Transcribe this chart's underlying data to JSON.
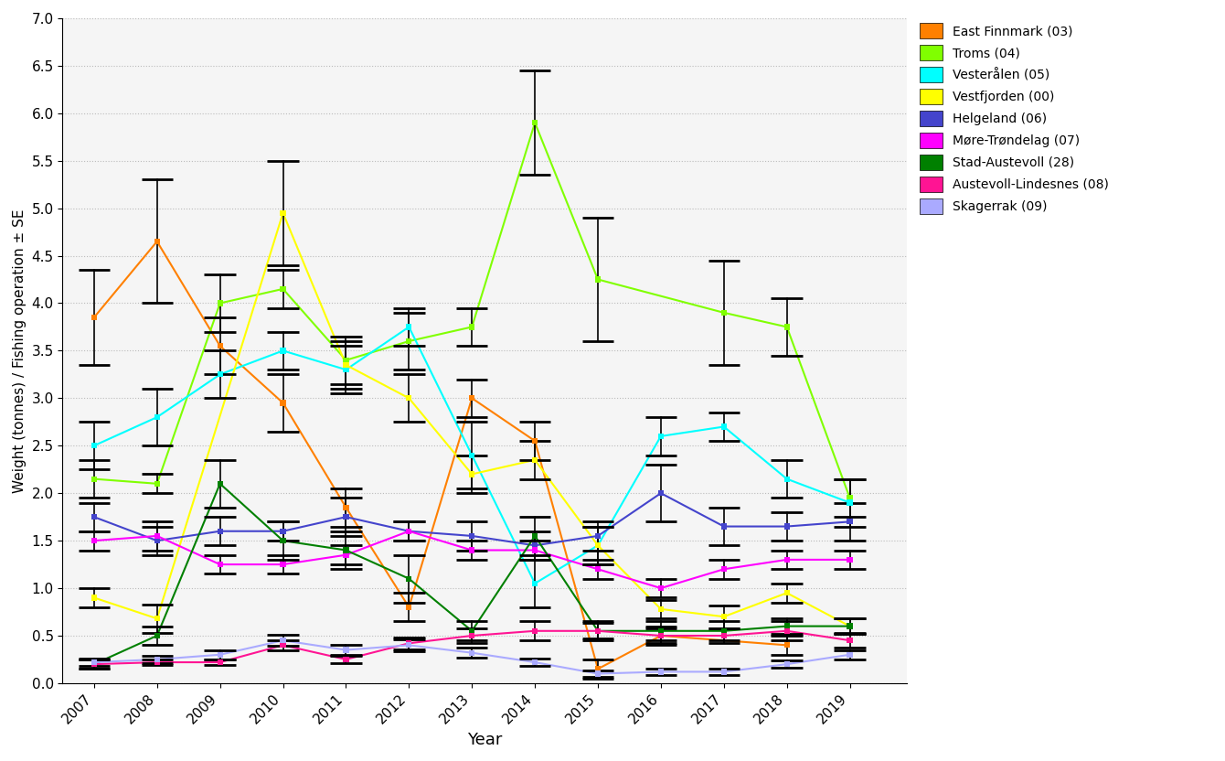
{
  "years": [
    2007,
    2008,
    2009,
    2010,
    2011,
    2012,
    2013,
    2014,
    2015,
    2016,
    2017,
    2018,
    2019
  ],
  "series": {
    "East Finnmark (03)": {
      "color": "#FF8000",
      "mean": [
        3.85,
        4.65,
        3.55,
        2.95,
        1.85,
        0.8,
        3.0,
        2.55,
        0.15,
        0.5,
        null,
        0.4,
        null
      ],
      "se": [
        0.5,
        0.65,
        0.3,
        0.3,
        0.2,
        0.15,
        0.2,
        0.2,
        0.1,
        0.1,
        null,
        0.1,
        null
      ]
    },
    "Troms (04)": {
      "color": "#80FF00",
      "mean": [
        2.15,
        2.1,
        4.0,
        4.15,
        3.4,
        3.6,
        3.75,
        5.9,
        4.25,
        null,
        3.9,
        3.75,
        1.95
      ],
      "se": [
        0.2,
        0.1,
        0.3,
        0.2,
        0.25,
        0.3,
        0.2,
        0.55,
        0.65,
        null,
        0.55,
        0.3,
        0.2
      ]
    },
    "Vesterålen (05)": {
      "color": "#00FFFF",
      "mean": [
        2.5,
        2.8,
        3.25,
        3.5,
        3.3,
        3.75,
        2.4,
        1.05,
        1.45,
        2.6,
        2.7,
        2.15,
        1.9
      ],
      "se": [
        0.25,
        0.3,
        0.25,
        0.2,
        0.25,
        0.2,
        0.35,
        0.25,
        0.2,
        0.2,
        0.15,
        0.2,
        0.25
      ]
    },
    "Vestfjorden (00)": {
      "color": "#FFFF00",
      "mean": [
        0.9,
        0.68,
        null,
        4.95,
        3.35,
        3.0,
        2.2,
        2.35,
        1.45,
        0.78,
        0.7,
        0.95,
        0.6
      ],
      "se": [
        0.1,
        0.15,
        null,
        0.55,
        0.25,
        0.25,
        0.2,
        0.2,
        0.2,
        0.1,
        0.12,
        0.1,
        0.08
      ]
    },
    "Helgeland (06)": {
      "color": "#4444CC",
      "mean": [
        1.75,
        1.5,
        1.6,
        1.6,
        1.75,
        1.6,
        1.55,
        1.45,
        1.55,
        2.0,
        1.65,
        1.65,
        1.7
      ],
      "se": [
        0.15,
        0.15,
        0.15,
        0.1,
        0.2,
        0.1,
        0.15,
        0.15,
        0.15,
        0.3,
        0.2,
        0.15,
        0.2
      ]
    },
    "Møre-Trøndelag (07)": {
      "color": "#FF00FF",
      "mean": [
        1.5,
        1.55,
        1.25,
        1.25,
        1.35,
        1.6,
        1.4,
        1.4,
        1.2,
        1.0,
        1.2,
        1.3,
        1.3
      ],
      "se": [
        0.1,
        0.15,
        0.1,
        0.1,
        0.1,
        0.1,
        0.1,
        0.1,
        0.1,
        0.1,
        0.1,
        0.1,
        0.1
      ]
    },
    "Stad-Austevoll (28)": {
      "color": "#008000",
      "mean": [
        0.2,
        0.5,
        2.1,
        1.5,
        1.4,
        1.1,
        0.55,
        1.55,
        0.55,
        0.55,
        0.55,
        0.6,
        0.6
      ],
      "se": [
        0.05,
        0.1,
        0.25,
        0.2,
        0.2,
        0.25,
        0.1,
        0.2,
        0.1,
        0.1,
        0.1,
        0.08,
        0.08
      ]
    },
    "Austevoll-Lindesnes (08)": {
      "color": "#FF1493",
      "mean": [
        0.2,
        0.22,
        0.22,
        0.4,
        0.25,
        0.42,
        0.5,
        0.55,
        0.55,
        0.5,
        0.5,
        0.55,
        0.45
      ],
      "se": [
        0.05,
        0.03,
        0.03,
        0.05,
        0.04,
        0.06,
        0.08,
        0.1,
        0.08,
        0.08,
        0.08,
        0.1,
        0.08
      ]
    },
    "Skagerrak (09)": {
      "color": "#AAAAFF",
      "mean": [
        0.22,
        0.25,
        0.3,
        0.45,
        0.35,
        0.4,
        0.32,
        0.22,
        0.1,
        0.12,
        0.12,
        0.2,
        0.3
      ],
      "se": [
        0.04,
        0.04,
        0.05,
        0.06,
        0.05,
        0.06,
        0.05,
        0.04,
        0.03,
        0.03,
        0.03,
        0.04,
        0.05
      ]
    }
  },
  "xlabel": "Year",
  "ylabel": "Weight (tonnes) / Fishing operation ± SE",
  "ylim": [
    0.0,
    7.0
  ],
  "yticks": [
    0.0,
    0.5,
    1.0,
    1.5,
    2.0,
    2.5,
    3.0,
    3.5,
    4.0,
    4.5,
    5.0,
    5.5,
    6.0,
    6.5,
    7.0
  ],
  "grid_color": "#BBBBBB",
  "background_color": "#FFFFFF",
  "plot_bg_color": "#F5F5F5"
}
